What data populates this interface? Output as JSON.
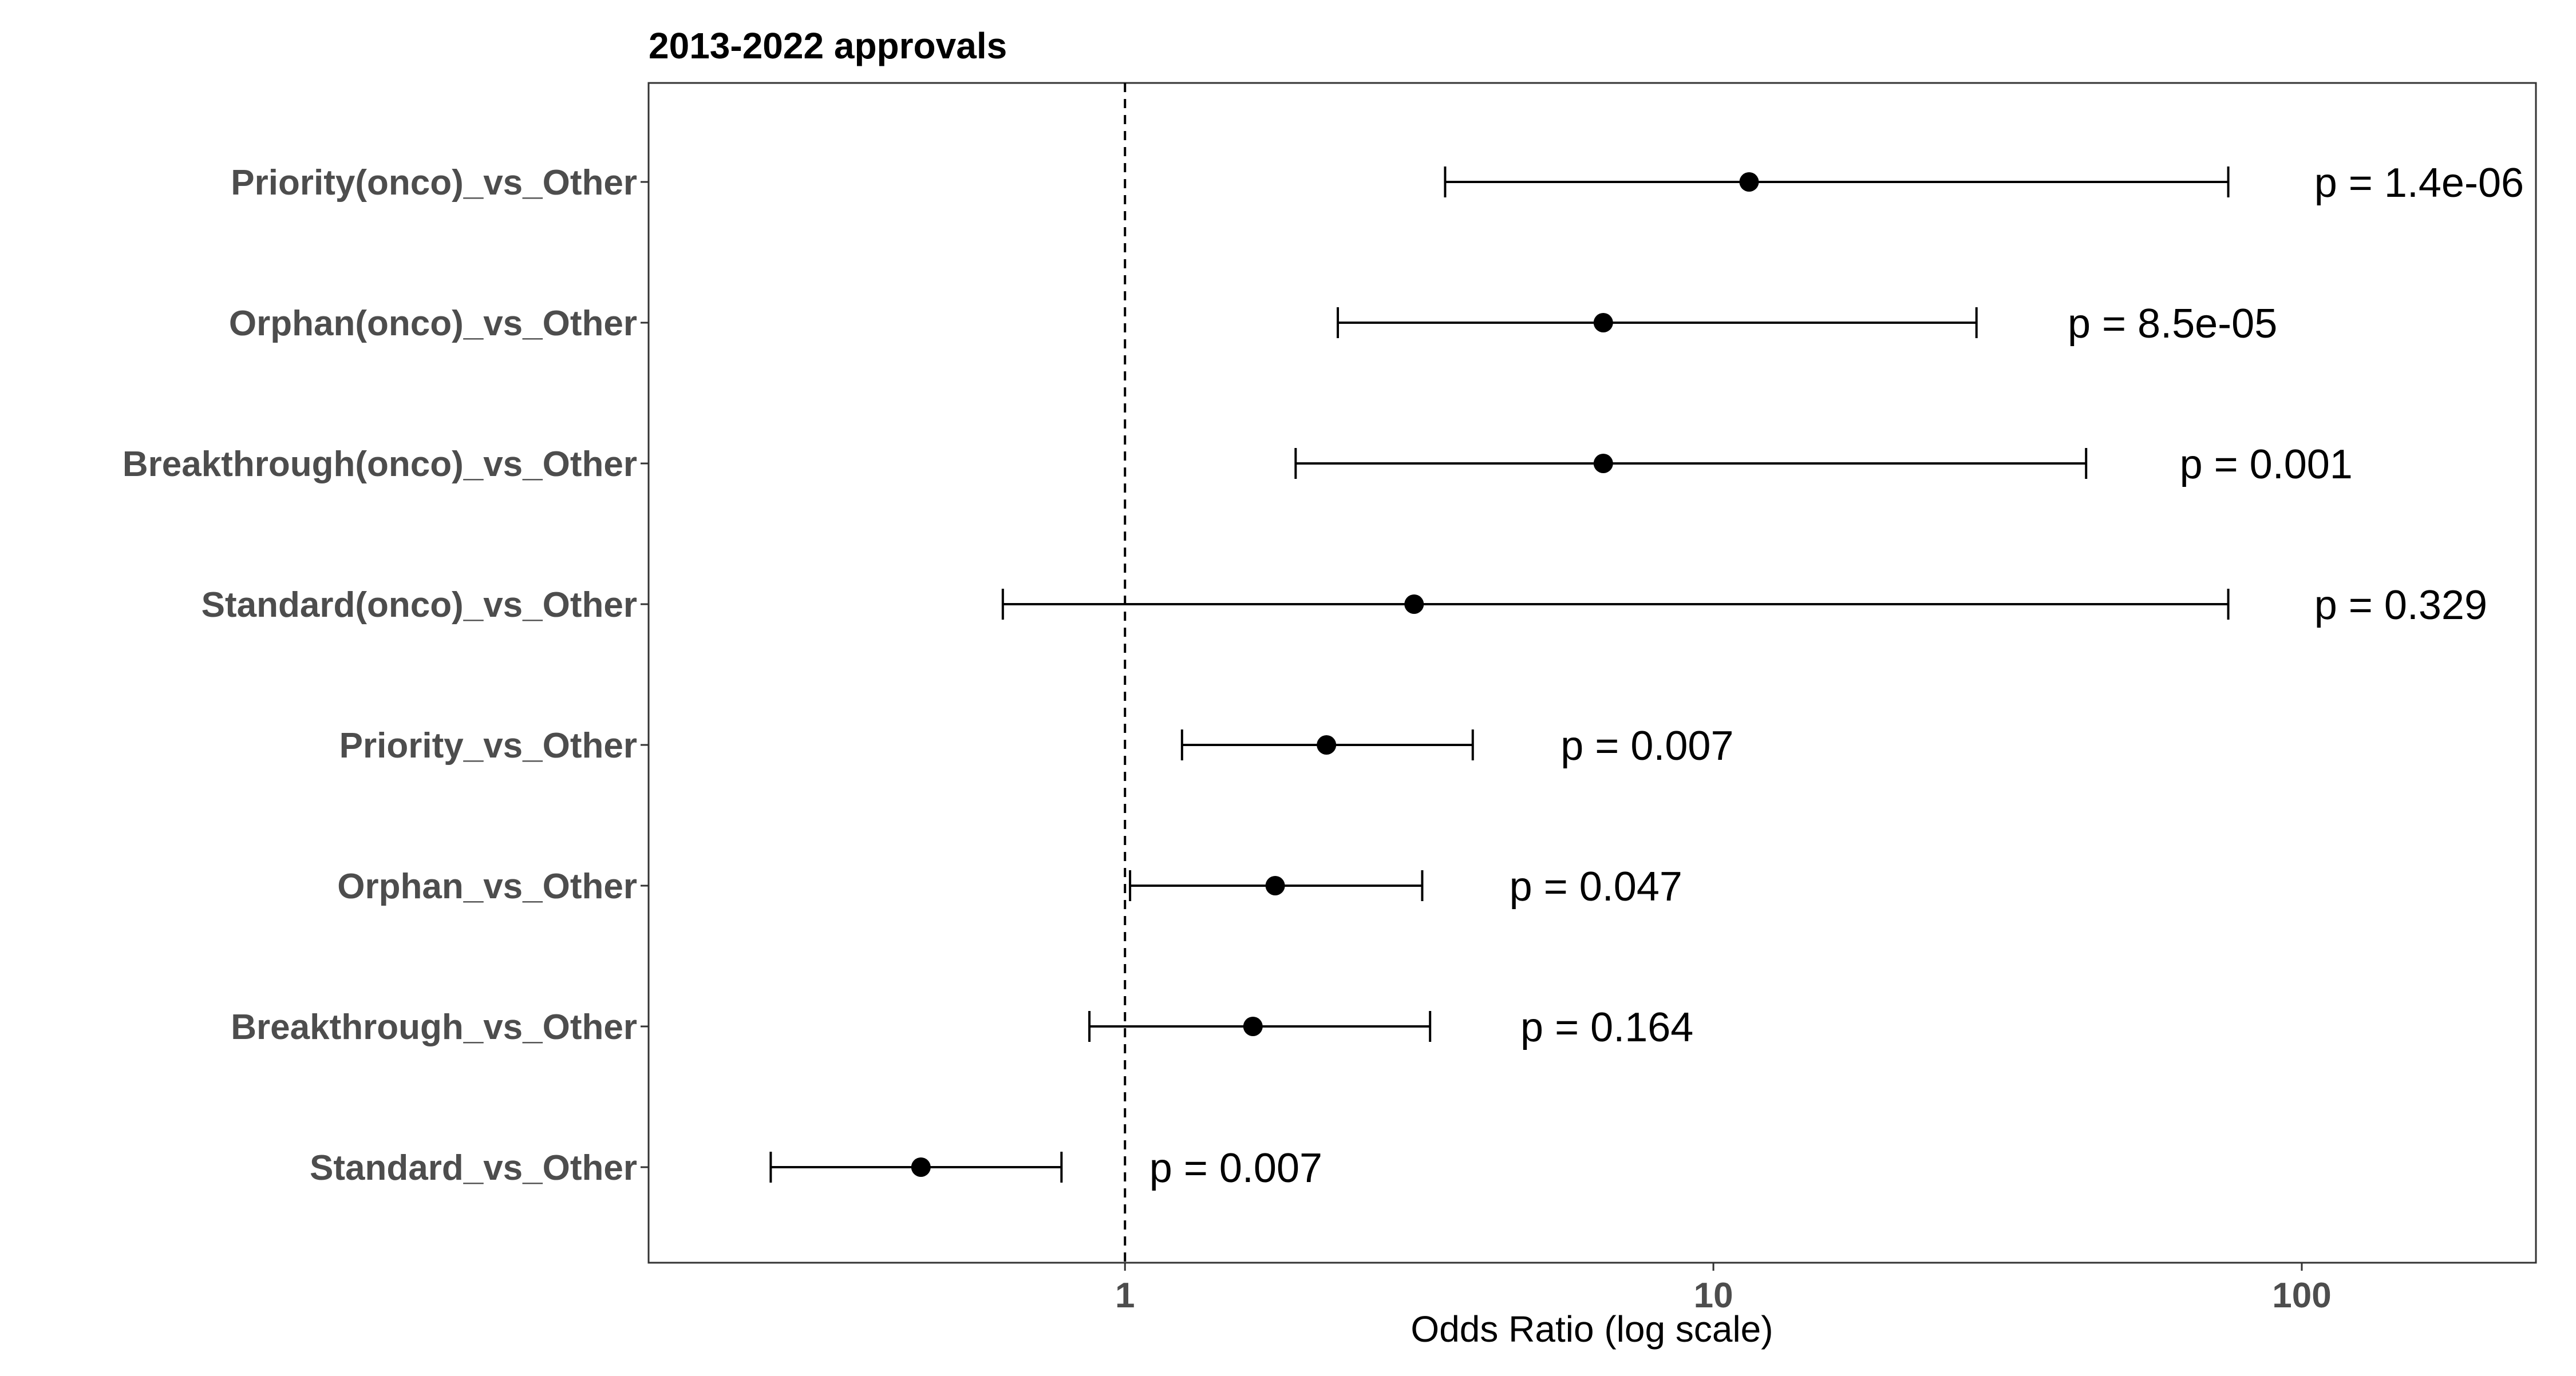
{
  "chart_data": {
    "type": "forest",
    "title": "2013-2022 approvals",
    "xlabel": "Odds Ratio (log scale)",
    "ylabel": "",
    "x_scale": "log10",
    "xlim": [
      0.155,
      250
    ],
    "x_ticks": [
      1,
      10,
      100
    ],
    "x_tick_labels": [
      "1",
      "10",
      "100"
    ],
    "reference_line": 1,
    "grid": false,
    "categories": [
      "Priority(onco)_vs_Other",
      "Orphan(onco)_vs_Other",
      "Breakthrough(onco)_vs_Other",
      "Standard(onco)_vs_Other",
      "Priority_vs_Other",
      "Orphan_vs_Other",
      "Breakthrough_vs_Other",
      "Standard_vs_Other"
    ],
    "estimates": [
      11.5,
      6.5,
      6.5,
      3.1,
      2.2,
      1.8,
      1.65,
      0.45
    ],
    "ci_low": [
      3.5,
      2.3,
      1.95,
      0.62,
      1.25,
      1.02,
      0.87,
      0.25
    ],
    "ci_high": [
      75,
      28,
      43,
      75,
      3.9,
      3.2,
      3.3,
      0.78
    ],
    "p_labels": [
      "p = 1.4e-06",
      "p = 8.5e-05",
      "p = 0.001",
      "p = 0.329",
      "p = 0.007",
      "p = 0.047",
      "p = 0.164",
      "p = 0.007"
    ],
    "p_label_x": [
      105,
      40,
      62,
      105,
      5.5,
      4.5,
      4.7,
      1.1
    ]
  }
}
